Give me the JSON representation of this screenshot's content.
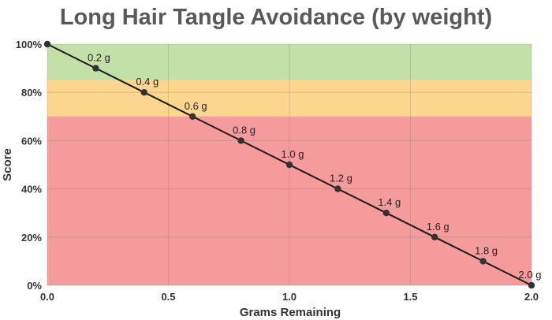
{
  "chart_data": {
    "type": "line",
    "title": "Long Hair Tangle Avoidance (by weight)",
    "xlabel": "Grams Remaining",
    "ylabel": "Score",
    "xlim": [
      0,
      2.0
    ],
    "ylim": [
      0,
      100
    ],
    "x_ticks": [
      0.0,
      0.5,
      1.0,
      1.5,
      2.0
    ],
    "x_tick_labels": [
      "0.0",
      "0.5",
      "1.0",
      "1.5",
      "2.0"
    ],
    "y_ticks": [
      0,
      20,
      40,
      60,
      80,
      100
    ],
    "y_tick_labels": [
      "0%",
      "20%",
      "40%",
      "60%",
      "80%",
      "100%"
    ],
    "grid": true,
    "bands": [
      {
        "name": "green",
        "from": 85,
        "to": 100,
        "color": "#c2e0a8"
      },
      {
        "name": "orange",
        "from": 70,
        "to": 85,
        "color": "#fcd58f"
      },
      {
        "name": "red",
        "from": 0,
        "to": 70,
        "color": "#f59b9b"
      }
    ],
    "series": [
      {
        "name": "Score",
        "color": "#1a1a1a",
        "x": [
          0.0,
          0.2,
          0.4,
          0.6,
          0.8,
          1.0,
          1.2,
          1.4,
          1.6,
          1.8,
          2.0
        ],
        "values": [
          100,
          90,
          80,
          70,
          60,
          50,
          40,
          30,
          20,
          10,
          0
        ],
        "labels": [
          "",
          "0.2 g",
          "0.4 g",
          "0.6 g",
          "0.8 g",
          "1.0 g",
          "1.2 g",
          "1.4 g",
          "1.6 g",
          "1.8 g",
          "2.0 g"
        ]
      }
    ]
  }
}
